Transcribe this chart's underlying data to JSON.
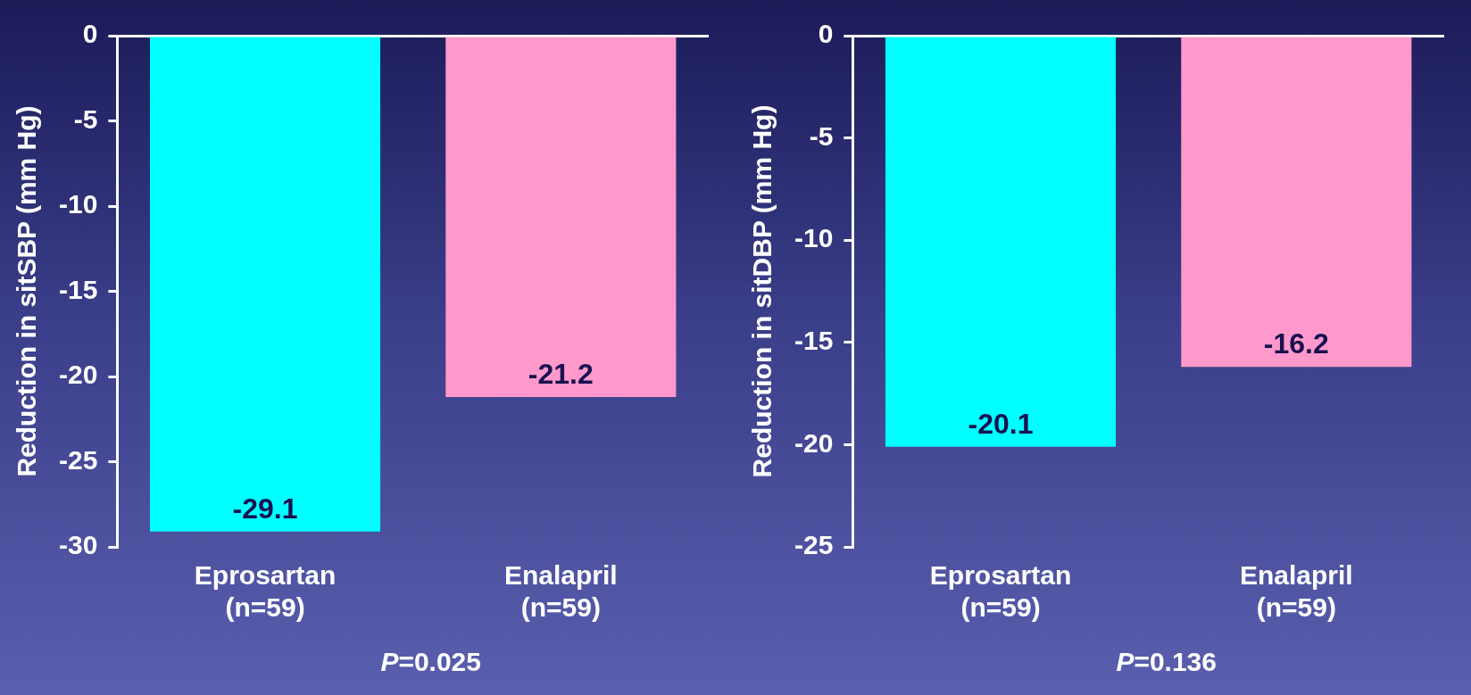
{
  "chart_data": [
    {
      "type": "bar",
      "ylabel": "Reduction in sitSBP (mm Hg)",
      "categories": [
        "Eprosartan\n(n=59)",
        "Enalapril\n(n=59)"
      ],
      "values": [
        -29.1,
        -21.2
      ],
      "colors": [
        "#00ffff",
        "#ff99cc"
      ],
      "ylim": [
        -30,
        0
      ],
      "yticks": [
        -30,
        -25,
        -20,
        -15,
        -10,
        -5,
        0
      ],
      "data_labels": true,
      "annotations": [
        "P=0.025"
      ]
    },
    {
      "type": "bar",
      "ylabel": "Reduction in sitDBP (mm Hg)",
      "categories": [
        "Eprosartan\n(n=59)",
        "Enalapril\n(n=59)"
      ],
      "values": [
        -20.1,
        -16.2
      ],
      "colors": [
        "#00ffff",
        "#ff99cc"
      ],
      "ylim": [
        -25,
        0
      ],
      "yticks": [
        -25,
        -20,
        -15,
        -10,
        -5,
        0
      ],
      "data_labels": true,
      "annotations": [
        "P=0.136"
      ]
    }
  ]
}
